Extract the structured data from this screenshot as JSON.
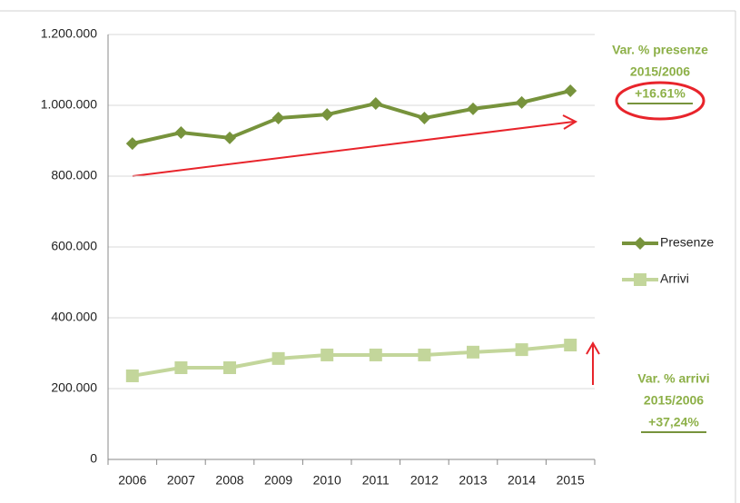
{
  "chart_data": {
    "type": "line",
    "categories": [
      "2006",
      "2007",
      "2008",
      "2009",
      "2010",
      "2011",
      "2012",
      "2013",
      "2014",
      "2015"
    ],
    "series": [
      {
        "name": "Presenze",
        "color": "#77933c",
        "marker": "diamond",
        "values": [
          892000,
          923000,
          908000,
          964000,
          974000,
          1005000,
          964000,
          990000,
          1008000,
          1041000
        ]
      },
      {
        "name": "Arrivi",
        "color": "#c3d69b",
        "marker": "square",
        "values": [
          236000,
          259000,
          259000,
          285000,
          295000,
          295000,
          295000,
          303000,
          310000,
          323000
        ]
      }
    ],
    "ylim": [
      0,
      1200000
    ],
    "yticks": [
      0,
      {
        "value": 200000,
        "label": "200.000"
      },
      {
        "value": 400000,
        "label": "400.000"
      },
      {
        "value": 600000,
        "label": "600.000"
      },
      {
        "value": 800000,
        "label": "800.000"
      },
      {
        "value": 1000000,
        "label": "1.000.000"
      },
      {
        "value": 1200000,
        "label": "1.200.000"
      }
    ],
    "grid": true,
    "legend": "right",
    "annotations": [
      {
        "lines": [
          "Var. % presenze",
          "2015/2006",
          "+16.61%"
        ]
      },
      {
        "lines": [
          "Var. % arrivi",
          "2015/2006",
          "+37,24%"
        ]
      }
    ]
  }
}
